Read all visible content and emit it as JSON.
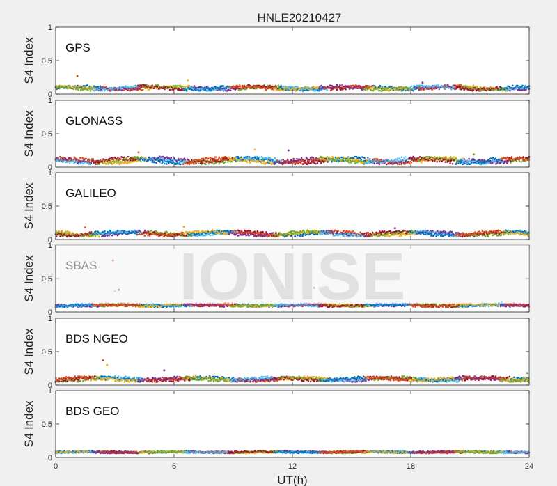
{
  "chart_data": {
    "type": "scatter",
    "title": "HNLE20210427",
    "xlabel": "UT(h)",
    "xlim": [
      0,
      24
    ],
    "xticks": [
      0,
      6,
      12,
      18,
      24
    ],
    "x_tick_labels": [
      "0",
      "6",
      "12",
      "18",
      "24"
    ],
    "ylim": [
      0,
      1
    ],
    "yticks": [
      0,
      0.5,
      1
    ],
    "y_tick_labels": [
      "0",
      "0.5",
      "1"
    ],
    "grid": false,
    "legend": "none",
    "palette": [
      "#0072bd",
      "#d95319",
      "#edb120",
      "#7e2f8e",
      "#77ac30",
      "#4dbeee",
      "#a2142f"
    ],
    "watermark": "IONISE",
    "panels": [
      {
        "name": "GPS",
        "ylabel": "S4 Index",
        "baseline": 0.09,
        "spread": 0.05,
        "wave": 0.02,
        "outliers": [
          [
            1.1,
            0.27
          ],
          [
            6.7,
            0.2
          ],
          [
            18.6,
            0.17
          ]
        ]
      },
      {
        "name": "GLONASS",
        "ylabel": "S4 Index",
        "baseline": 0.1,
        "spread": 0.06,
        "wave": 0.03,
        "outliers": [
          [
            4.2,
            0.22
          ],
          [
            10.1,
            0.26
          ],
          [
            11.8,
            0.25
          ],
          [
            21.2,
            0.19
          ]
        ]
      },
      {
        "name": "GALILEO",
        "ylabel": "S4 Index",
        "baseline": 0.09,
        "spread": 0.05,
        "wave": 0.025,
        "outliers": [
          [
            1.5,
            0.18
          ],
          [
            6.5,
            0.19
          ],
          [
            17.2,
            0.17
          ]
        ]
      },
      {
        "name": "SBAS",
        "ylabel": "S4 Index",
        "baseline": 0.1,
        "spread": 0.04,
        "wave": 0.01,
        "outliers": [
          [
            2.9,
            0.77
          ],
          [
            3.0,
            0.31
          ],
          [
            3.2,
            0.33
          ],
          [
            13.1,
            0.36
          ],
          [
            22.6,
            0.15
          ]
        ]
      },
      {
        "name": "BDS NGEO",
        "ylabel": "S4 Index",
        "baseline": 0.09,
        "spread": 0.05,
        "wave": 0.02,
        "outliers": [
          [
            2.4,
            0.37
          ],
          [
            2.6,
            0.3
          ],
          [
            5.5,
            0.22
          ],
          [
            23.9,
            0.18
          ]
        ]
      },
      {
        "name": "BDS GEO",
        "ylabel": "S4 Index",
        "baseline": 0.08,
        "spread": 0.03,
        "wave": 0.005,
        "outliers": []
      }
    ]
  }
}
